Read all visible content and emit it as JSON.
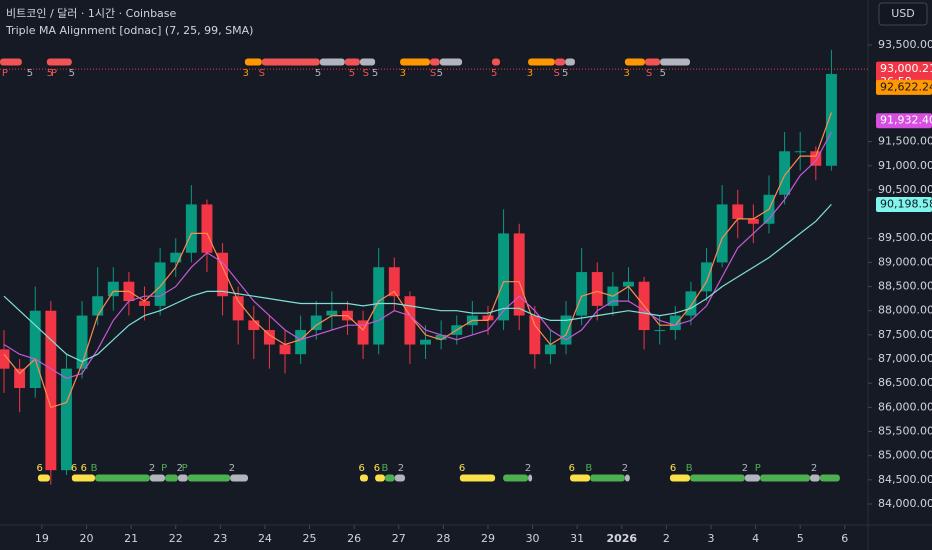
{
  "chart_data": {
    "type": "candlestick",
    "symbol_line": "비트코인 / 달러 · 1시간 · Coinbase",
    "indicator_line": "Triple MA Alignment [odnac] (7, 25, 99, SMA)",
    "currency": "USD",
    "up_color": "#089981",
    "down_color": "#f23645",
    "x": [
      0.15,
      0.5,
      0.85,
      1.2,
      1.55,
      1.9,
      2.25,
      2.6,
      2.95,
      3.3,
      3.65,
      4.0,
      4.35,
      4.7,
      5.05,
      5.4,
      5.75,
      6.1,
      6.45,
      6.8,
      7.15,
      7.5,
      7.85,
      8.2,
      8.55,
      8.9,
      9.25,
      9.6,
      9.95,
      10.3,
      10.65,
      11.0,
      11.35,
      11.7,
      12.05,
      12.4,
      12.75,
      13.1,
      13.45,
      13.8,
      14.15,
      14.5,
      14.85,
      15.2,
      15.55,
      15.9,
      16.25,
      16.6,
      16.95,
      17.3,
      17.65,
      18.0,
      18.35,
      18.7
    ],
    "open": [
      87200,
      86800,
      86400,
      88000,
      84700,
      86800,
      87900,
      88300,
      88600,
      88200,
      88100,
      89000,
      89200,
      90200,
      89200,
      88300,
      87800,
      87600,
      87300,
      87100,
      87600,
      87900,
      88000,
      87800,
      87300,
      88900,
      88300,
      87300,
      87400,
      87500,
      87700,
      87900,
      87800,
      89600,
      87900,
      87100,
      87300,
      87900,
      88800,
      88100,
      88500,
      88600,
      87600,
      87600,
      87900,
      88400,
      89000,
      90200,
      89900,
      89800,
      90400,
      91300,
      91300,
      91000
    ],
    "high": [
      87600,
      87000,
      88500,
      88200,
      87100,
      88200,
      88900,
      88900,
      88800,
      88500,
      89300,
      89500,
      90600,
      90300,
      89400,
      88500,
      88100,
      87900,
      87600,
      87900,
      88200,
      88400,
      88200,
      88000,
      89300,
      89100,
      88400,
      87700,
      87800,
      87900,
      88200,
      88100,
      90100,
      89800,
      88100,
      87600,
      88200,
      89300,
      89000,
      88800,
      88900,
      88700,
      87900,
      88100,
      88600,
      89300,
      90600,
      90500,
      90200,
      90800,
      91700,
      91700,
      91400,
      93400
    ],
    "low": [
      86300,
      85900,
      86200,
      84400,
      84600,
      86600,
      87700,
      88000,
      87900,
      87800,
      87900,
      88700,
      89000,
      88800,
      87900,
      87300,
      87000,
      86800,
      86700,
      86900,
      87400,
      87600,
      87500,
      87000,
      87100,
      88000,
      86900,
      87000,
      87200,
      87300,
      87500,
      87500,
      87600,
      87600,
      86800,
      86900,
      87100,
      87700,
      87800,
      87900,
      88200,
      87200,
      87300,
      87400,
      87700,
      88200,
      88900,
      89500,
      89400,
      89600,
      90200,
      90900,
      90700,
      90900
    ],
    "close": [
      86800,
      86400,
      88000,
      84700,
      86800,
      87900,
      88300,
      88600,
      88200,
      88100,
      89000,
      89200,
      90200,
      89200,
      88300,
      87800,
      87600,
      87300,
      87100,
      87600,
      87900,
      88000,
      87800,
      87300,
      88900,
      88300,
      87300,
      87400,
      87500,
      87700,
      87900,
      87800,
      89600,
      87900,
      87100,
      87300,
      87900,
      88800,
      88100,
      88500,
      88600,
      87600,
      87600,
      87900,
      88400,
      89000,
      90200,
      89900,
      89800,
      90400,
      91300,
      91300,
      91000,
      92900
    ],
    "ma_series": [
      {
        "color": "#ff8a50",
        "values": [
          87100,
          86700,
          87000,
          86000,
          86100,
          86900,
          87900,
          88400,
          88400,
          88200,
          88500,
          88900,
          89600,
          89600,
          88900,
          88200,
          87800,
          87500,
          87300,
          87400,
          87700,
          87900,
          87900,
          87600,
          88200,
          88400,
          87900,
          87500,
          87400,
          87600,
          87800,
          87800,
          88600,
          88600,
          87700,
          87300,
          87500,
          88300,
          88400,
          88300,
          88500,
          88100,
          87700,
          87700,
          88100,
          88600,
          89500,
          89900,
          89900,
          90100,
          90800,
          91200,
          91200,
          92100
        ]
      },
      {
        "color": "#c659d6",
        "values": [
          87300,
          87100,
          87000,
          86800,
          86600,
          86700,
          87200,
          87800,
          88200,
          88300,
          88300,
          88500,
          88900,
          89200,
          89000,
          88600,
          88200,
          87900,
          87600,
          87400,
          87500,
          87600,
          87700,
          87700,
          87800,
          88000,
          87900,
          87600,
          87500,
          87400,
          87500,
          87600,
          88000,
          88300,
          88000,
          87600,
          87400,
          87600,
          88000,
          88200,
          88200,
          88000,
          87800,
          87700,
          87800,
          88100,
          88700,
          89300,
          89600,
          89900,
          90300,
          90800,
          91100,
          91700
        ]
      },
      {
        "color": "#7fe0d8",
        "values": [
          88300,
          88000,
          87700,
          87400,
          87100,
          86950,
          87100,
          87400,
          87700,
          87900,
          88000,
          88150,
          88300,
          88400,
          88400,
          88350,
          88300,
          88250,
          88200,
          88150,
          88150,
          88150,
          88150,
          88100,
          88150,
          88150,
          88100,
          88050,
          88000,
          88000,
          87950,
          87950,
          88050,
          88050,
          87900,
          87800,
          87800,
          87850,
          87900,
          87950,
          88000,
          87950,
          87900,
          87950,
          88050,
          88250,
          88500,
          88700,
          88900,
          89100,
          89350,
          89600,
          89850,
          90200
        ]
      }
    ],
    "xlim": [
      0.06,
      19.52
    ],
    "xticks": [
      {
        "value": 1,
        "label": "19"
      },
      {
        "value": 2,
        "label": "20"
      },
      {
        "value": 3,
        "label": "21"
      },
      {
        "value": 4,
        "label": "22"
      },
      {
        "value": 5,
        "label": "23"
      },
      {
        "value": 6,
        "label": "24"
      },
      {
        "value": 7,
        "label": "25"
      },
      {
        "value": 8,
        "label": "26"
      },
      {
        "value": 9,
        "label": "27"
      },
      {
        "value": 10,
        "label": "28"
      },
      {
        "value": 11,
        "label": "29"
      },
      {
        "value": 12,
        "label": "30"
      },
      {
        "value": 13,
        "label": "31"
      },
      {
        "value": 14,
        "label": "2026",
        "bold": true
      },
      {
        "value": 15,
        "label": "2"
      },
      {
        "value": 16,
        "label": "3"
      },
      {
        "value": 17,
        "label": "4"
      },
      {
        "value": 18,
        "label": "5"
      },
      {
        "value": 19,
        "label": "6"
      }
    ],
    "ylim": [
      83565,
      94431
    ],
    "yticks": [
      {
        "value": 84000,
        "label": "84,000.00"
      },
      {
        "value": 84500,
        "label": "84,500.00"
      },
      {
        "value": 85000,
        "label": "85,000.00"
      },
      {
        "value": 85500,
        "label": "85,500.00"
      },
      {
        "value": 86000,
        "label": "86,000.00"
      },
      {
        "value": 86500,
        "label": "86,500.00"
      },
      {
        "value": 87000,
        "label": "87,000.00"
      },
      {
        "value": 87500,
        "label": "87,500.00"
      },
      {
        "value": 88000,
        "label": "88,000.00"
      },
      {
        "value": 88500,
        "label": "88,500.00"
      },
      {
        "value": 89000,
        "label": "89,000.00"
      },
      {
        "value": 89500,
        "label": "89,500.00"
      },
      {
        "value": 90500,
        "label": "90,500.00"
      },
      {
        "value": 91000,
        "label": "91,000.00"
      },
      {
        "value": 91500,
        "label": "91,500.00"
      },
      {
        "value": 93500,
        "label": "93,500.00"
      }
    ],
    "price_badges": [
      {
        "value": 93000.21,
        "label": "93,000.21",
        "timer": "36:58",
        "color": "#f23645",
        "text_color": "#ffffff",
        "line": true
      },
      {
        "value": 92622.24,
        "label": "92,622.24",
        "color": "#ff9800",
        "text_color": "#131722"
      },
      {
        "value": 91932.4,
        "label": "91,932.40",
        "color": "#d64fe0",
        "text_color": "#ffffff"
      },
      {
        "value": 90198.58,
        "label": "90,198.58",
        "color": "#7ff5ec",
        "text_color": "#131722"
      }
    ],
    "signal_strips": [
      {
        "row": "top",
        "x0": 0.06,
        "x1": 0.55,
        "color": "#f05454"
      },
      {
        "row": "top",
        "x0": 1.11,
        "x1": 1.67,
        "color": "#f05454"
      },
      {
        "row": "top",
        "x0": 5.55,
        "x1": 5.93,
        "color": "#ff9800"
      },
      {
        "row": "top",
        "x0": 5.93,
        "x1": 7.23,
        "color": "#f05454"
      },
      {
        "row": "top",
        "x0": 7.23,
        "x1": 7.79,
        "color": "#b2b5be"
      },
      {
        "row": "top",
        "x0": 7.79,
        "x1": 8.13,
        "color": "#f05454"
      },
      {
        "row": "top",
        "x0": 8.13,
        "x1": 8.47,
        "color": "#b2b5be"
      },
      {
        "row": "top",
        "x0": 9.03,
        "x1": 9.7,
        "color": "#ff9800"
      },
      {
        "row": "top",
        "x0": 9.7,
        "x1": 9.92,
        "color": "#f05454"
      },
      {
        "row": "top",
        "x0": 9.92,
        "x1": 10.42,
        "color": "#b2b5be"
      },
      {
        "row": "top",
        "x0": 11.09,
        "x1": 11.27,
        "color": "#f05454"
      },
      {
        "row": "top",
        "x0": 11.9,
        "x1": 12.5,
        "color": "#ff9800"
      },
      {
        "row": "top",
        "x0": 12.5,
        "x1": 12.73,
        "color": "#f05454"
      },
      {
        "row": "top",
        "x0": 12.73,
        "x1": 12.95,
        "color": "#b2b5be"
      },
      {
        "row": "top",
        "x0": 14.07,
        "x1": 14.52,
        "color": "#ff9800"
      },
      {
        "row": "top",
        "x0": 14.52,
        "x1": 14.86,
        "color": "#f05454"
      },
      {
        "row": "top",
        "x0": 14.86,
        "x1": 15.53,
        "color": "#b2b5be"
      },
      {
        "row": "bottom",
        "x0": 0.91,
        "x1": 1.18,
        "color": "#fbe04a"
      },
      {
        "row": "bottom",
        "x0": 1.67,
        "x1": 2.19,
        "color": "#fbe04a"
      },
      {
        "row": "bottom",
        "x0": 2.19,
        "x1": 3.42,
        "color": "#4caf50"
      },
      {
        "row": "bottom",
        "x0": 3.42,
        "x1": 3.76,
        "color": "#b2b5be"
      },
      {
        "row": "bottom",
        "x0": 3.76,
        "x1": 4.05,
        "color": "#4caf50"
      },
      {
        "row": "bottom",
        "x0": 4.05,
        "x1": 4.27,
        "color": "#b2b5be"
      },
      {
        "row": "bottom",
        "x0": 4.27,
        "x1": 5.22,
        "color": "#4caf50"
      },
      {
        "row": "bottom",
        "x0": 5.22,
        "x1": 5.62,
        "color": "#b2b5be"
      },
      {
        "row": "bottom",
        "x0": 8.13,
        "x1": 8.31,
        "color": "#fbe04a"
      },
      {
        "row": "bottom",
        "x0": 8.47,
        "x1": 8.69,
        "color": "#fbe04a"
      },
      {
        "row": "bottom",
        "x0": 8.69,
        "x1": 8.91,
        "color": "#4caf50"
      },
      {
        "row": "bottom",
        "x0": 8.91,
        "x1": 9.14,
        "color": "#b2b5be"
      },
      {
        "row": "bottom",
        "x0": 10.37,
        "x1": 11.16,
        "color": "#fbe04a"
      },
      {
        "row": "bottom",
        "x0": 11.34,
        "x1": 11.9,
        "color": "#4caf50"
      },
      {
        "row": "bottom",
        "x0": 11.9,
        "x1": 11.99,
        "color": "#b2b5be"
      },
      {
        "row": "bottom",
        "x0": 12.84,
        "x1": 13.29,
        "color": "#fbe04a"
      },
      {
        "row": "bottom",
        "x0": 13.29,
        "x1": 14.07,
        "color": "#4caf50"
      },
      {
        "row": "bottom",
        "x0": 14.07,
        "x1": 14.18,
        "color": "#b2b5be"
      },
      {
        "row": "bottom",
        "x0": 15.08,
        "x1": 15.53,
        "color": "#fbe04a"
      },
      {
        "row": "bottom",
        "x0": 15.53,
        "x1": 16.76,
        "color": "#4caf50"
      },
      {
        "row": "bottom",
        "x0": 16.76,
        "x1": 17.1,
        "color": "#b2b5be"
      },
      {
        "row": "bottom",
        "x0": 17.1,
        "x1": 18.22,
        "color": "#4caf50"
      },
      {
        "row": "bottom",
        "x0": 18.22,
        "x1": 18.44,
        "color": "#b2b5be"
      },
      {
        "row": "bottom",
        "x0": 18.44,
        "x1": 18.89,
        "color": "#4caf50"
      }
    ],
    "signal_labels": [
      {
        "row": "top",
        "x": 0.17,
        "text": "P",
        "color": "#f05454"
      },
      {
        "row": "top",
        "x": 0.73,
        "text": "5",
        "color": "#b2b5be"
      },
      {
        "row": "top",
        "x": 1.18,
        "text": "5",
        "color": "#f05454"
      },
      {
        "row": "top",
        "x": 1.27,
        "text": "P",
        "color": "#f05454"
      },
      {
        "row": "top",
        "x": 1.67,
        "text": "5",
        "color": "#b2b5be"
      },
      {
        "row": "top",
        "x": 5.57,
        "text": "3",
        "color": "#ff9800"
      },
      {
        "row": "top",
        "x": 5.93,
        "text": "S",
        "color": "#f05454"
      },
      {
        "row": "top",
        "x": 7.19,
        "text": "5",
        "color": "#b2b5be"
      },
      {
        "row": "top",
        "x": 7.95,
        "text": "5",
        "color": "#f05454"
      },
      {
        "row": "top",
        "x": 8.26,
        "text": "S",
        "color": "#f05454"
      },
      {
        "row": "top",
        "x": 8.47,
        "text": "5",
        "color": "#b2b5be"
      },
      {
        "row": "top",
        "x": 9.09,
        "text": "3",
        "color": "#ff9800"
      },
      {
        "row": "top",
        "x": 9.77,
        "text": "S",
        "color": "#f05454"
      },
      {
        "row": "top",
        "x": 9.92,
        "text": "5",
        "color": "#b2b5be"
      },
      {
        "row": "top",
        "x": 11.14,
        "text": "5",
        "color": "#f05454"
      },
      {
        "row": "top",
        "x": 11.94,
        "text": "3",
        "color": "#ff9800"
      },
      {
        "row": "top",
        "x": 12.54,
        "text": "S",
        "color": "#f05454"
      },
      {
        "row": "top",
        "x": 12.73,
        "text": "5",
        "color": "#b2b5be"
      },
      {
        "row": "top",
        "x": 14.11,
        "text": "3",
        "color": "#ff9800"
      },
      {
        "row": "top",
        "x": 14.61,
        "text": "S",
        "color": "#f05454"
      },
      {
        "row": "top",
        "x": 14.92,
        "text": "5",
        "color": "#b2b5be"
      },
      {
        "row": "bottom",
        "x": 0.95,
        "text": "6",
        "color": "#fbe04a"
      },
      {
        "row": "bottom",
        "x": 1.72,
        "text": "6",
        "color": "#fbe04a"
      },
      {
        "row": "bottom",
        "x": 1.94,
        "text": "6",
        "color": "#fbe04a"
      },
      {
        "row": "bottom",
        "x": 2.17,
        "text": "B",
        "color": "#4caf50"
      },
      {
        "row": "bottom",
        "x": 3.47,
        "text": "2",
        "color": "#b2b5be"
      },
      {
        "row": "bottom",
        "x": 3.74,
        "text": "P",
        "color": "#4caf50"
      },
      {
        "row": "bottom",
        "x": 4.09,
        "text": "2",
        "color": "#b2b5be"
      },
      {
        "row": "bottom",
        "x": 4.2,
        "text": "P",
        "color": "#4caf50"
      },
      {
        "row": "bottom",
        "x": 5.26,
        "text": "2",
        "color": "#b2b5be"
      },
      {
        "row": "bottom",
        "x": 8.17,
        "text": "6",
        "color": "#fbe04a"
      },
      {
        "row": "bottom",
        "x": 8.51,
        "text": "6",
        "color": "#fbe04a"
      },
      {
        "row": "bottom",
        "x": 8.69,
        "text": "B",
        "color": "#4caf50"
      },
      {
        "row": "bottom",
        "x": 9.05,
        "text": "2",
        "color": "#b2b5be"
      },
      {
        "row": "bottom",
        "x": 10.42,
        "text": "6",
        "color": "#fbe04a"
      },
      {
        "row": "bottom",
        "x": 11.9,
        "text": "2",
        "color": "#b2b5be"
      },
      {
        "row": "bottom",
        "x": 12.88,
        "text": "6",
        "color": "#fbe04a"
      },
      {
        "row": "bottom",
        "x": 13.26,
        "text": "B",
        "color": "#4caf50"
      },
      {
        "row": "bottom",
        "x": 14.07,
        "text": "2",
        "color": "#b2b5be"
      },
      {
        "row": "bottom",
        "x": 15.15,
        "text": "6",
        "color": "#fbe04a"
      },
      {
        "row": "bottom",
        "x": 15.51,
        "text": "B",
        "color": "#4caf50"
      },
      {
        "row": "bottom",
        "x": 16.76,
        "text": "2",
        "color": "#b2b5be"
      },
      {
        "row": "bottom",
        "x": 17.05,
        "text": "P",
        "color": "#4caf50"
      },
      {
        "row": "bottom",
        "x": 18.31,
        "text": "2",
        "color": "#b2b5be"
      }
    ]
  }
}
